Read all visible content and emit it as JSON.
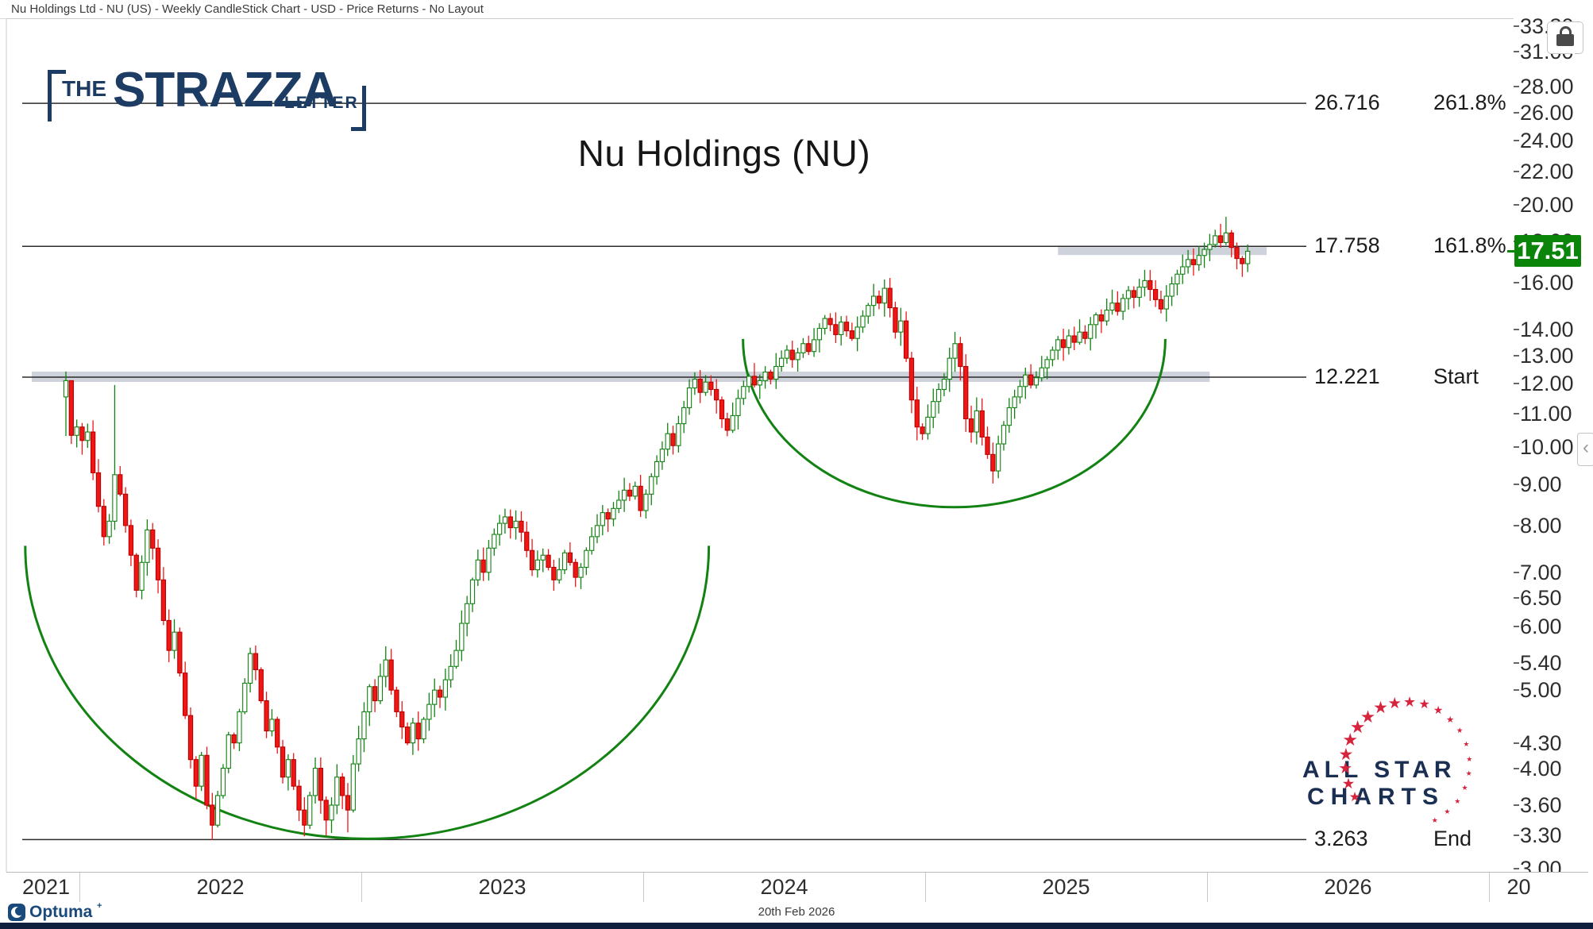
{
  "window": {
    "title": "Nu Holdings Ltd - NU (US) - Weekly CandleStick Chart - USD - Price Returns - No Layout"
  },
  "chart": {
    "title": "Nu Holdings (NU)"
  },
  "branding": {
    "strazza": {
      "the": "THE",
      "name": "STRAZZA",
      "suffix": "LETTER",
      "color": "#1d3c63"
    },
    "allstar": {
      "line1": "ALL STAR",
      "line2": "CHARTS",
      "text_color": "#1b2f52",
      "star_color": "#d6243d",
      "star_count": 21
    },
    "optuma": {
      "label": "Optuma",
      "plus": "+"
    }
  },
  "status_bar": {
    "date": "20th Feb 2026"
  },
  "icons": {
    "chevron_left": "‹"
  },
  "chart_data": {
    "type": "candlestick",
    "symbol": "NU",
    "timeframe": "weekly",
    "currency": "USD",
    "title": "Nu Holdings (NU)",
    "y_axis": {
      "scale": "log",
      "ticks": [
        33.3,
        31.0,
        28.0,
        26.0,
        24.0,
        22.0,
        20.0,
        18.0,
        16.0,
        14.0,
        13.0,
        12.0,
        11.0,
        10.0,
        9.0,
        8.0,
        7.0,
        6.5,
        6.0,
        5.4,
        5.0,
        4.3,
        4.0,
        3.6,
        3.3,
        3.0
      ],
      "last_price": 17.51,
      "last_price_label": "17.51"
    },
    "x_axis": {
      "years": [
        "2021",
        "2022",
        "2023",
        "2024",
        "2025",
        "2026",
        "20"
      ],
      "weeks_in_first_year": 3,
      "weeks_per_year": 52
    },
    "fib_levels": [
      {
        "price": 26.716,
        "price_label": "26.716",
        "name": "261.8%"
      },
      {
        "price": 17.758,
        "price_label": "17.758",
        "name": "161.8%"
      },
      {
        "price": 12.221,
        "price_label": "12.221",
        "name": "Start"
      },
      {
        "price": 3.263,
        "price_label": "3.263",
        "name": "End"
      }
    ],
    "zones": [
      {
        "price": 12.221,
        "week_from": -6.3,
        "week_to": 211,
        "align": "center"
      },
      {
        "price": 17.758,
        "week_from": 183,
        "week_to": 221.5,
        "align": "below"
      }
    ],
    "arcs": [
      {
        "week_from": -7.5,
        "week_to": 118.6,
        "rim_price": 7.55,
        "low_price": 3.27
      },
      {
        "week_from": 124.9,
        "week_to": 202.8,
        "rim_price": 13.63,
        "low_price": 8.43
      }
    ],
    "closes": [
      12.1,
      10.35,
      10.6,
      10.2,
      10.45,
      9.3,
      8.45,
      7.75,
      8.1,
      9.25,
      8.75,
      8.0,
      7.35,
      6.65,
      7.2,
      7.9,
      7.5,
      6.85,
      6.1,
      5.6,
      5.9,
      5.25,
      4.65,
      4.1,
      3.8,
      4.15,
      3.6,
      3.4,
      3.7,
      4.0,
      4.4,
      4.3,
      4.7,
      5.1,
      5.55,
      5.3,
      4.85,
      4.45,
      4.6,
      4.25,
      3.9,
      4.1,
      3.8,
      3.55,
      3.4,
      3.7,
      4.0,
      3.65,
      3.45,
      3.6,
      3.9,
      3.7,
      3.55,
      4.05,
      4.35,
      4.7,
      5.05,
      4.85,
      5.2,
      5.45,
      5.0,
      4.7,
      4.5,
      4.3,
      4.55,
      4.35,
      4.6,
      4.8,
      5.0,
      4.9,
      5.15,
      5.35,
      5.6,
      6.05,
      6.4,
      6.85,
      7.25,
      7.0,
      7.5,
      7.8,
      8.05,
      8.2,
      7.95,
      8.1,
      7.85,
      7.45,
      7.05,
      7.25,
      7.35,
      7.1,
      6.85,
      7.05,
      7.4,
      7.2,
      6.9,
      7.1,
      7.45,
      7.75,
      8.0,
      8.3,
      8.15,
      8.4,
      8.6,
      8.85,
      8.7,
      8.95,
      8.35,
      8.75,
      9.2,
      9.6,
      9.95,
      10.4,
      10.05,
      10.7,
      11.2,
      11.85,
      12.15,
      11.7,
      12.05,
      11.8,
      11.45,
      10.85,
      10.5,
      10.95,
      11.5,
      11.9,
      12.25,
      11.95,
      12.1,
      12.4,
      12.15,
      12.6,
      12.9,
      13.2,
      12.85,
      13.1,
      13.45,
      13.15,
      13.6,
      14.05,
      14.45,
      14.2,
      13.8,
      14.3,
      13.95,
      13.65,
      14.1,
      14.55,
      15.0,
      15.4,
      15.1,
      15.75,
      14.9,
      13.9,
      14.35,
      12.9,
      11.45,
      10.6,
      10.4,
      10.9,
      11.4,
      11.8,
      12.15,
      12.9,
      13.45,
      12.6,
      10.85,
      10.45,
      11.1,
      10.3,
      9.8,
      9.35,
      10.1,
      10.65,
      11.2,
      11.55,
      11.9,
      12.3,
      11.95,
      12.2,
      12.55,
      12.85,
      13.2,
      13.6,
      13.3,
      13.75,
      13.5,
      13.9,
      13.65,
      14.2,
      14.6,
      14.35,
      14.8,
      15.1,
      14.75,
      15.3,
      15.65,
      15.35,
      15.8,
      16.1,
      15.7,
      15.25,
      14.85,
      15.4,
      15.95,
      16.4,
      16.75,
      17.1,
      16.85,
      17.3,
      17.6,
      17.85,
      18.3,
      17.95,
      18.45,
      17.7,
      17.15,
      16.9,
      17.51
    ],
    "overrides": {
      "0": {
        "o": 11.55,
        "h": 12.42,
        "l": 10.33
      },
      "1": {
        "h": 11.9
      },
      "9": {
        "h": 11.95,
        "l": 7.9
      },
      "27": {
        "l": 3.26
      },
      "48": {
        "l": 3.3
      },
      "52": {
        "l": 3.33
      },
      "151": {
        "h": 16.15
      },
      "166": {
        "l": 10.45
      },
      "171": {
        "l": 9.02
      },
      "214": {
        "h": 19.32
      },
      "218": {
        "h": 17.85,
        "l": 16.5
      }
    },
    "colors": {
      "up_stroke": "#128212",
      "up_fill": "#ffffff",
      "down_fill": "#f01616",
      "down_stroke": "#b80000",
      "arc": "#128212",
      "zone_fill": "rgba(158,168,184,0.5)",
      "fib_line": "#2b2b2b",
      "badge_bg": "#0a850a"
    }
  }
}
